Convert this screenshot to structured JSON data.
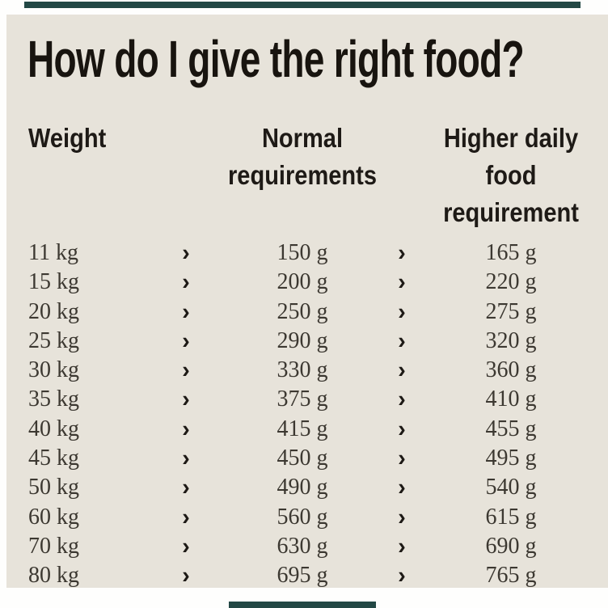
{
  "page": {
    "background": "#fefefd",
    "panel_background": "#e7e3da",
    "accent_bar_color": "#234845",
    "title_color": "#18140f",
    "header_color": "#1e1a16",
    "row_text_color": "#3c3831"
  },
  "title": "How do I give the right food?",
  "table": {
    "arrow_icon": "›",
    "columns": [
      {
        "label": "Weight",
        "lines": [
          "Weight"
        ]
      },
      {
        "label": "Normal requirements",
        "lines": [
          "Normal",
          "requirements"
        ]
      },
      {
        "label": "Higher daily food requirement",
        "lines": [
          "Higher daily",
          "food",
          "requirement"
        ]
      }
    ],
    "rows": [
      {
        "weight": "11 kg",
        "normal": "150 g",
        "higher": "165 g"
      },
      {
        "weight": "15 kg",
        "normal": "200 g",
        "higher": "220 g"
      },
      {
        "weight": "20 kg",
        "normal": "250 g",
        "higher": "275 g"
      },
      {
        "weight": "25 kg",
        "normal": "290 g",
        "higher": "320 g"
      },
      {
        "weight": "30 kg",
        "normal": "330 g",
        "higher": "360 g"
      },
      {
        "weight": "35 kg",
        "normal": "375 g",
        "higher": "410 g"
      },
      {
        "weight": "40 kg",
        "normal": "415 g",
        "higher": "455 g"
      },
      {
        "weight": "45 kg",
        "normal": "450 g",
        "higher": "495 g"
      },
      {
        "weight": "50 kg",
        "normal": "490 g",
        "higher": "540 g"
      },
      {
        "weight": "60 kg",
        "normal": "560 g",
        "higher": "615 g"
      },
      {
        "weight": "70 kg",
        "normal": "630 g",
        "higher": "690 g"
      },
      {
        "weight": "80 kg",
        "normal": "695 g",
        "higher": "765 g"
      }
    ]
  }
}
